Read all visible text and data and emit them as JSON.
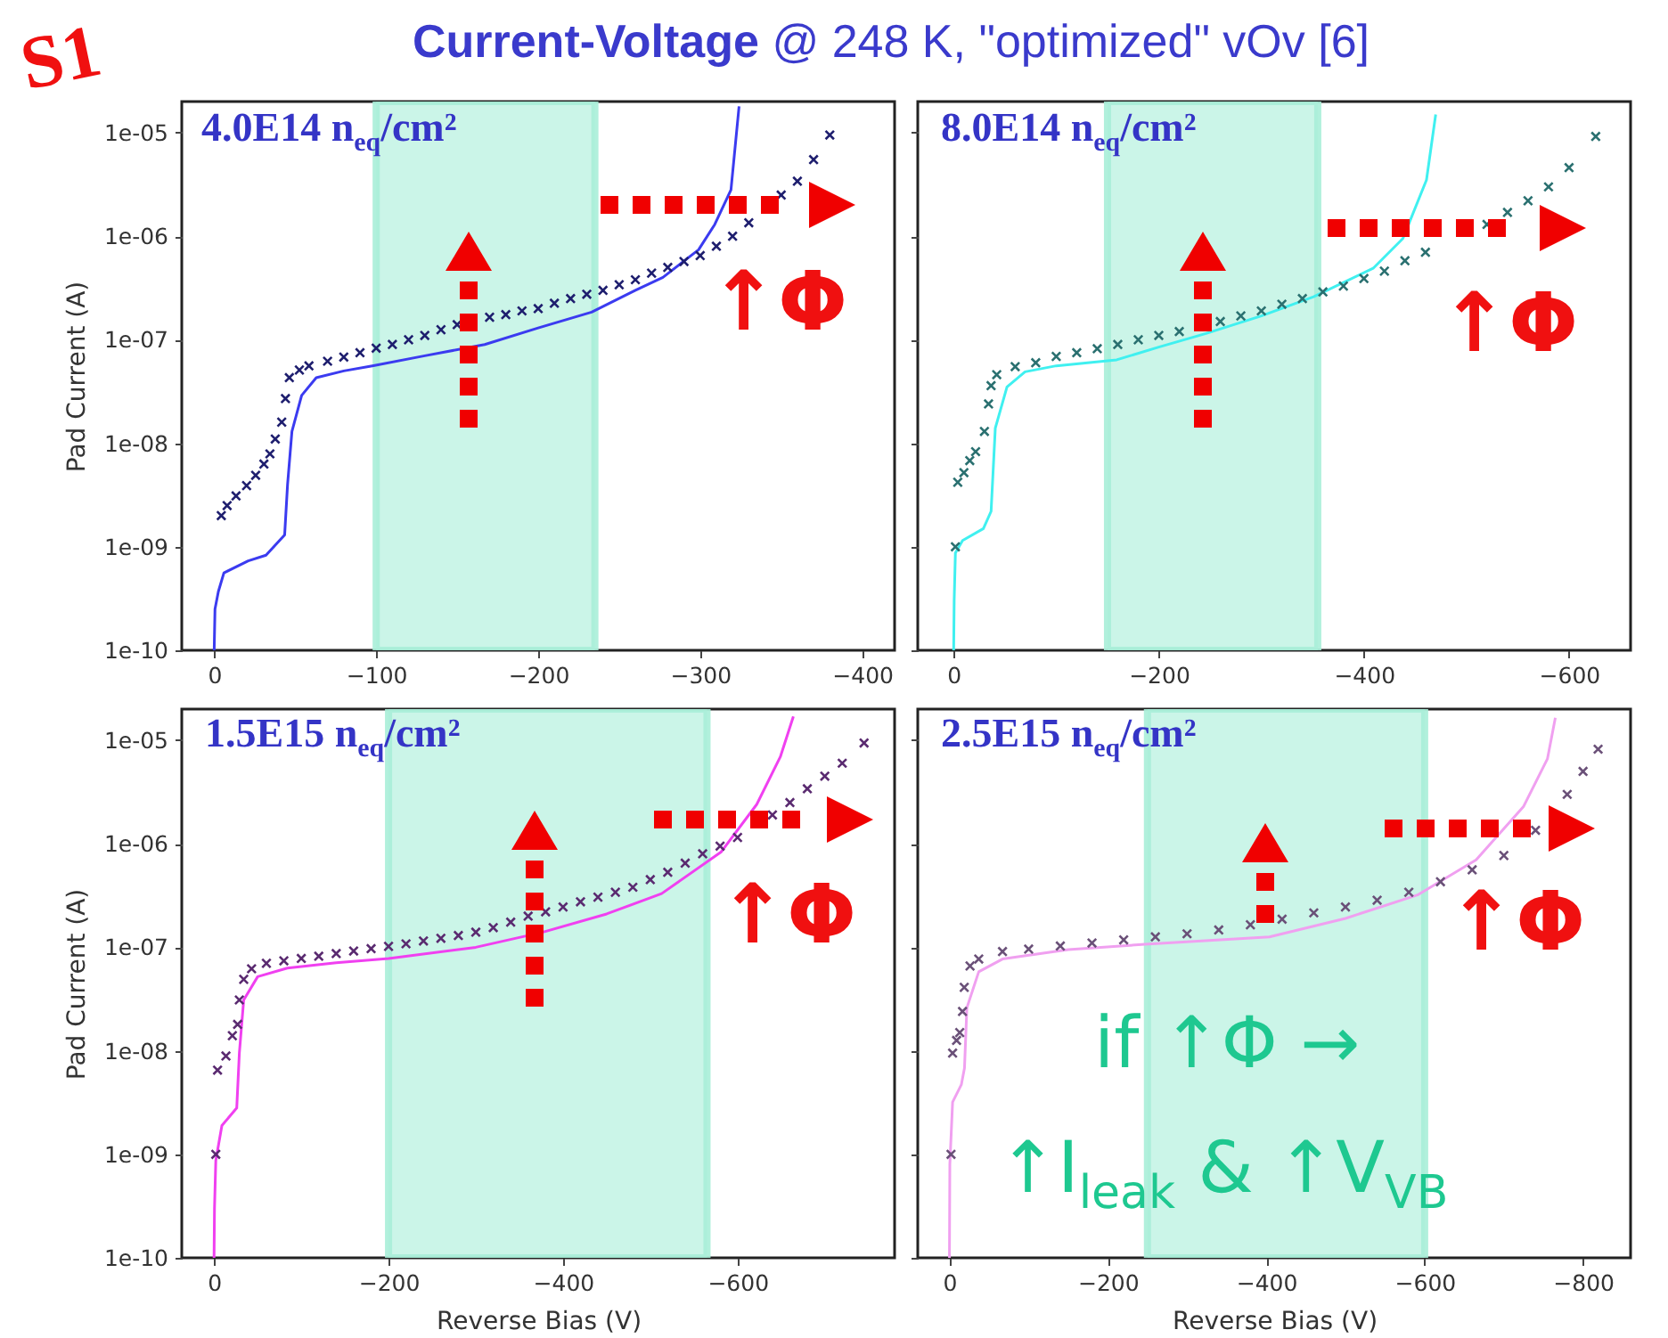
{
  "chart_data": [
    {
      "type": "line",
      "title": "Current-Voltage",
      "subtitle": "@ 248 K, \"optimized\" vOv [6]",
      "ylabel": "Pad Current (A)",
      "log": "y",
      "xlim": [
        20,
        -420
      ],
      "ylim": [
        1e-10,
        2e-05
      ],
      "xticks": [
        0,
        -100,
        -200,
        -300,
        -400
      ],
      "yticks": [
        {
          "value": 1e-10,
          "label": "1e-10"
        },
        {
          "value": 1e-09,
          "label": "1e-09"
        },
        {
          "value": 1e-08,
          "label": "1e-08"
        },
        {
          "value": 1e-07,
          "label": "1e-07"
        },
        {
          "value": 1e-06,
          "label": "1e-06"
        },
        {
          "value": 1e-05,
          "label": "1e-05"
        }
      ],
      "bands": [
        {
          "axis": "x",
          "from": -100,
          "to": -235,
          "color": "#a8eed8"
        }
      ],
      "annotations": [
        "S1",
        "4.0E14 n$_{eq}$/cm²",
        "↑Φ"
      ],
      "series": [
        {
          "type": "line",
          "color": "#3b3bf0",
          "x": [
            0,
            -0.5,
            -2.6,
            -6,
            -21,
            -32,
            -43.5,
            -45.3,
            -48,
            -54,
            -63,
            -80,
            -97.6,
            -130,
            -167,
            -200,
            -233,
            -260,
            -277,
            -299,
            -309,
            -319,
            -324
          ],
          "values": [
            1e-10,
            2.5e-10,
            3.7e-10,
            5.6e-10,
            7.3e-10,
            8.3e-10,
            1.3e-09,
            4e-09,
            1.3e-08,
            2.9e-08,
            4.3e-08,
            5e-08,
            5.6e-08,
            7e-08,
            9e-08,
            1.3e-07,
            1.85e-07,
            3e-07,
            4e-07,
            7.4e-07,
            1.3e-06,
            2.8e-06,
            1.8e-05
          ]
        },
        {
          "type": "scatter",
          "marker": "cross",
          "color": "#1e1e6e",
          "x": [
            -4.4,
            -8,
            -13.5,
            -20,
            -25.6,
            -30.7,
            -34.4,
            -37.7,
            -41.7,
            -44,
            -46.4,
            -52.6,
            -58.5,
            -70,
            -80,
            -90,
            -100,
            -110,
            -120,
            -130,
            -140,
            -150,
            -170,
            -180,
            -190,
            -200,
            -210,
            -220,
            -230,
            -240,
            -250,
            -260,
            -270,
            -280,
            -290,
            -300,
            -310,
            -320,
            -330,
            -350,
            -360,
            -370,
            -380
          ],
          "values": [
            2e-09,
            2.5e-09,
            3.1e-09,
            3.9e-09,
            4.9e-09,
            6.3e-09,
            7.9e-09,
            1.1e-08,
            1.6e-08,
            2.7e-08,
            4.3e-08,
            5.1e-08,
            5.6e-08,
            6.2e-08,
            6.8e-08,
            7.5e-08,
            8.3e-08,
            9e-08,
            1e-07,
            1.1e-07,
            1.25e-07,
            1.4e-07,
            1.65e-07,
            1.75e-07,
            1.9e-07,
            2e-07,
            2.25e-07,
            2.5e-07,
            2.75e-07,
            3e-07,
            3.4e-07,
            3.8e-07,
            4.4e-07,
            5e-07,
            5.7e-07,
            6.5e-07,
            8e-07,
            1e-06,
            1.35e-06,
            2.5e-06,
            3.4e-06,
            5.5e-06,
            9.5e-06
          ]
        }
      ]
    },
    {
      "type": "line",
      "log": "y",
      "tick_labels": "x",
      "xlim": [
        35,
        -660
      ],
      "ylim": [
        1e-10,
        2e-05
      ],
      "xticks": [
        0,
        -200,
        -400,
        -600
      ],
      "yticks": [
        {
          "value": 1e-10,
          "label": null
        },
        {
          "value": 1e-09,
          "label": null
        },
        {
          "value": 1e-08,
          "label": null
        },
        {
          "value": 1e-07,
          "label": null
        },
        {
          "value": 1e-06,
          "label": null
        },
        {
          "value": 1e-05,
          "label": null
        }
      ],
      "bands": [
        {
          "axis": "x",
          "from": -150,
          "to": -355,
          "color": "#a8eed8"
        }
      ],
      "annotations": [
        "8.0E14 n$_{eq}$/cm²",
        "↑Φ"
      ],
      "series": [
        {
          "type": "line",
          "color": "#40f0f0",
          "x": [
            0,
            -0.5,
            -1.7,
            -8.7,
            -29,
            -36.5,
            -40.6,
            -52,
            -69.6,
            -100,
            -159,
            -200,
            -246,
            -300,
            -351,
            -409,
            -438,
            -461,
            -470
          ],
          "values": [
            1e-10,
            3e-10,
            8.7e-10,
            1.15e-09,
            1.5e-09,
            2.2e-09,
            1.4e-08,
            3.5e-08,
            4.9e-08,
            5.6e-08,
            6.4e-08,
            8.5e-08,
            1.15e-07,
            1.7e-07,
            2.6e-07,
            4.9e-07,
            9.5e-07,
            3.5e-06,
            1.5e-05
          ]
        },
        {
          "type": "scatter",
          "marker": "cross",
          "color": "#2a7070",
          "x": [
            -1.7,
            -4,
            -10,
            -15.7,
            -21.4,
            -30,
            -34,
            -36.5,
            -42,
            -60,
            -80,
            -100,
            -120,
            -140,
            -160,
            -180,
            -200,
            -220,
            -260,
            -280,
            -300,
            -320,
            -340,
            -360,
            -380,
            -400,
            -420,
            -440,
            -460,
            -520,
            -540,
            -560,
            -580,
            -600,
            -626
          ],
          "values": [
            1e-09,
            4.2e-09,
            5.2e-09,
            6.8e-09,
            8.3e-09,
            1.3e-08,
            2.4e-08,
            3.6e-08,
            4.6e-08,
            5.5e-08,
            6e-08,
            6.9e-08,
            7.5e-08,
            8.2e-08,
            9e-08,
            1e-07,
            1.1e-07,
            1.2e-07,
            1.5e-07,
            1.7e-07,
            1.9e-07,
            2.2e-07,
            2.5e-07,
            2.9e-07,
            3.3e-07,
            3.9e-07,
            4.6e-07,
            5.8e-07,
            7e-07,
            1.3e-06,
            1.7e-06,
            2.2e-06,
            3e-06,
            4.6e-06,
            9.2e-06
          ]
        }
      ]
    },
    {
      "type": "line",
      "xlabel": "Reverse Bias (V)",
      "ylabel": "Pad Current (A)",
      "log": "y",
      "xlim": [
        37,
        -780
      ],
      "ylim": [
        1e-10,
        2e-05
      ],
      "xticks": [
        0,
        -200,
        -400,
        -600
      ],
      "yticks": [
        {
          "value": 1e-10,
          "label": "1e-10"
        },
        {
          "value": 1e-09,
          "label": "1e-09"
        },
        {
          "value": 1e-08,
          "label": "1e-08"
        },
        {
          "value": 1e-07,
          "label": "1e-07"
        },
        {
          "value": 1e-06,
          "label": "1e-06"
        },
        {
          "value": 1e-05,
          "label": "1e-05"
        }
      ],
      "bands": [
        {
          "axis": "x",
          "from": -200,
          "to": -565,
          "color": "#a8eed8"
        }
      ],
      "annotations": [
        "1.5E15 n$_{eq}$/cm²",
        "↑Φ"
      ],
      "series": [
        {
          "type": "line",
          "color": "#f040f0",
          "x": [
            0,
            -0.5,
            -2,
            -9,
            -26,
            -29,
            -34,
            -50,
            -84,
            -140,
            -200,
            -300,
            -377,
            -450,
            -513,
            -581,
            -622,
            -649,
            -664
          ],
          "values": [
            1e-10,
            3e-10,
            8.7e-10,
            1.9e-09,
            2.8e-09,
            9.5e-09,
            3.1e-08,
            5.2e-08,
            6.3e-08,
            7.1e-08,
            7.8e-08,
            1e-07,
            1.4e-07,
            2.1e-07,
            3.3e-07,
            8.3e-07,
            2.4e-06,
            6.9e-06,
            1.7e-05
          ]
        },
        {
          "type": "scatter",
          "marker": "cross",
          "color": "#5a2a70",
          "x": [
            -2,
            -4,
            -13.6,
            -21,
            -27,
            -29,
            -34,
            -43,
            -60,
            -80,
            -100,
            -120,
            -140,
            -160,
            -180,
            -200,
            -220,
            -240,
            -260,
            -280,
            -300,
            -320,
            -340,
            -360,
            -380,
            -400,
            -420,
            -440,
            -460,
            -480,
            -500,
            -520,
            -540,
            -560,
            -580,
            -600,
            -640,
            -660,
            -680,
            -700,
            -720,
            -745
          ],
          "values": [
            1e-09,
            6.5e-09,
            8.9e-09,
            1.4e-08,
            1.8e-08,
            3.1e-08,
            4.9e-08,
            6.2e-08,
            7e-08,
            7.4e-08,
            7.8e-08,
            8.2e-08,
            8.7e-08,
            9.2e-08,
            9.7e-08,
            1.02e-07,
            1.08e-07,
            1.15e-07,
            1.22e-07,
            1.3e-07,
            1.4e-07,
            1.55e-07,
            1.75e-07,
            2e-07,
            2.2e-07,
            2.45e-07,
            2.75e-07,
            3.05e-07,
            3.4e-07,
            3.8e-07,
            4.5e-07,
            5.3e-07,
            6.5e-07,
            8e-07,
            9.5e-07,
            1.15e-06,
            1.9e-06,
            2.5e-06,
            3.4e-06,
            4.5e-06,
            6e-06,
            9.4e-06
          ]
        }
      ]
    },
    {
      "type": "line",
      "xlabel": "Reverse Bias (V)",
      "log": "y",
      "tick_labels": "x",
      "xlim": [
        40,
        -860
      ],
      "ylim": [
        1e-10,
        2e-05
      ],
      "xticks": [
        0,
        -200,
        -400,
        -600,
        -800
      ],
      "yticks": [
        {
          "value": 1e-10,
          "label": null
        },
        {
          "value": 1e-09,
          "label": null
        },
        {
          "value": 1e-08,
          "label": null
        },
        {
          "value": 1e-07,
          "label": null
        },
        {
          "value": 1e-06,
          "label": null
        },
        {
          "value": 1e-05,
          "label": null
        }
      ],
      "bands": [
        {
          "axis": "x",
          "from": -250,
          "to": -600,
          "color": "#a8eed8"
        }
      ],
      "annotations": [
        "2.5E15 n$_{eq}$/cm²",
        "↑Φ",
        "if ↑Φ →",
        "↑I$_{leak}$ & ↑V$_{VB}$"
      ],
      "series": [
        {
          "type": "line",
          "color": "#f0a0f0",
          "x": [
            0,
            -0.5,
            -4,
            -15,
            -19,
            -22,
            -37,
            -67,
            -150,
            -247,
            -404,
            -500,
            -591,
            -665,
            -725,
            -755,
            -765
          ],
          "values": [
            1e-10,
            8e-10,
            3.2e-09,
            4.7e-09,
            6.8e-09,
            2.6e-08,
            5.8e-08,
            7.7e-08,
            9.5e-08,
            1.07e-07,
            1.26e-07,
            1.9e-07,
            3.2e-07,
            7e-07,
            2.3e-06,
            6.6e-06,
            1.65e-05
          ]
        },
        {
          "type": "scatter",
          "marker": "cross",
          "color": "#6a5078",
          "x": [
            -2,
            -4,
            -9,
            -13,
            -16.5,
            -18.7,
            -26,
            -37,
            -67,
            -100,
            -140,
            -180,
            -220,
            -260,
            -300,
            -340,
            -380,
            -420,
            -460,
            -500,
            -540,
            -580,
            -620,
            -660,
            -700,
            -740,
            -780,
            -800,
            -819
          ],
          "values": [
            1e-09,
            9.5e-09,
            1.26e-08,
            1.5e-08,
            2.4e-08,
            4.1e-08,
            6.6e-08,
            7.7e-08,
            9.1e-08,
            9.6e-08,
            1.03e-07,
            1.1e-07,
            1.18e-07,
            1.26e-07,
            1.35e-07,
            1.47e-07,
            1.65e-07,
            1.87e-07,
            2.15e-07,
            2.45e-07,
            2.85e-07,
            3.4e-07,
            4.3e-07,
            5.6e-07,
            7.7e-07,
            1.35e-06,
            3e-06,
            5e-06,
            8.2e-06
          ]
        }
      ]
    }
  ]
}
